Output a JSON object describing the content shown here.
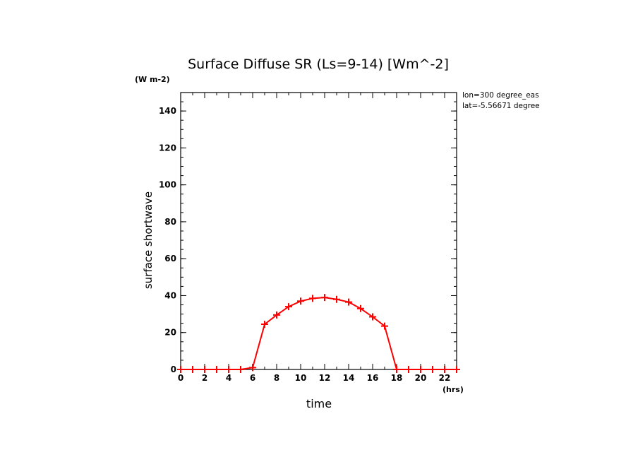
{
  "chart_data": {
    "type": "line",
    "title": "Surface Diffuse SR (Ls=9-14) [Wm^-2]",
    "ylabel": "surface shortwave",
    "yunit": "(W m-2)",
    "xlabel": "time",
    "xunit": "(hrs)",
    "annotations": [
      "lon=300 degree_eas",
      "lat=-5.56671 degree"
    ],
    "xlim": [
      0,
      23
    ],
    "ylim": [
      0,
      150
    ],
    "xticks": [
      0,
      2,
      4,
      6,
      8,
      10,
      12,
      14,
      16,
      18,
      20,
      22
    ],
    "yticks": [
      0,
      20,
      40,
      60,
      80,
      100,
      120,
      140
    ],
    "line_color": "#ff0000",
    "series": [
      {
        "x": [
          0,
          1,
          2,
          3,
          4,
          5,
          6,
          7,
          8,
          9,
          10,
          11,
          12,
          13,
          14,
          15,
          16,
          17,
          18,
          19,
          20,
          21,
          22,
          23
        ],
        "values": [
          0,
          0,
          0,
          0,
          0,
          0,
          1,
          24.5,
          29.5,
          34,
          37,
          38.5,
          39,
          38,
          36.5,
          33,
          28.5,
          23.5,
          0,
          0,
          0,
          0,
          0,
          0
        ]
      }
    ]
  }
}
